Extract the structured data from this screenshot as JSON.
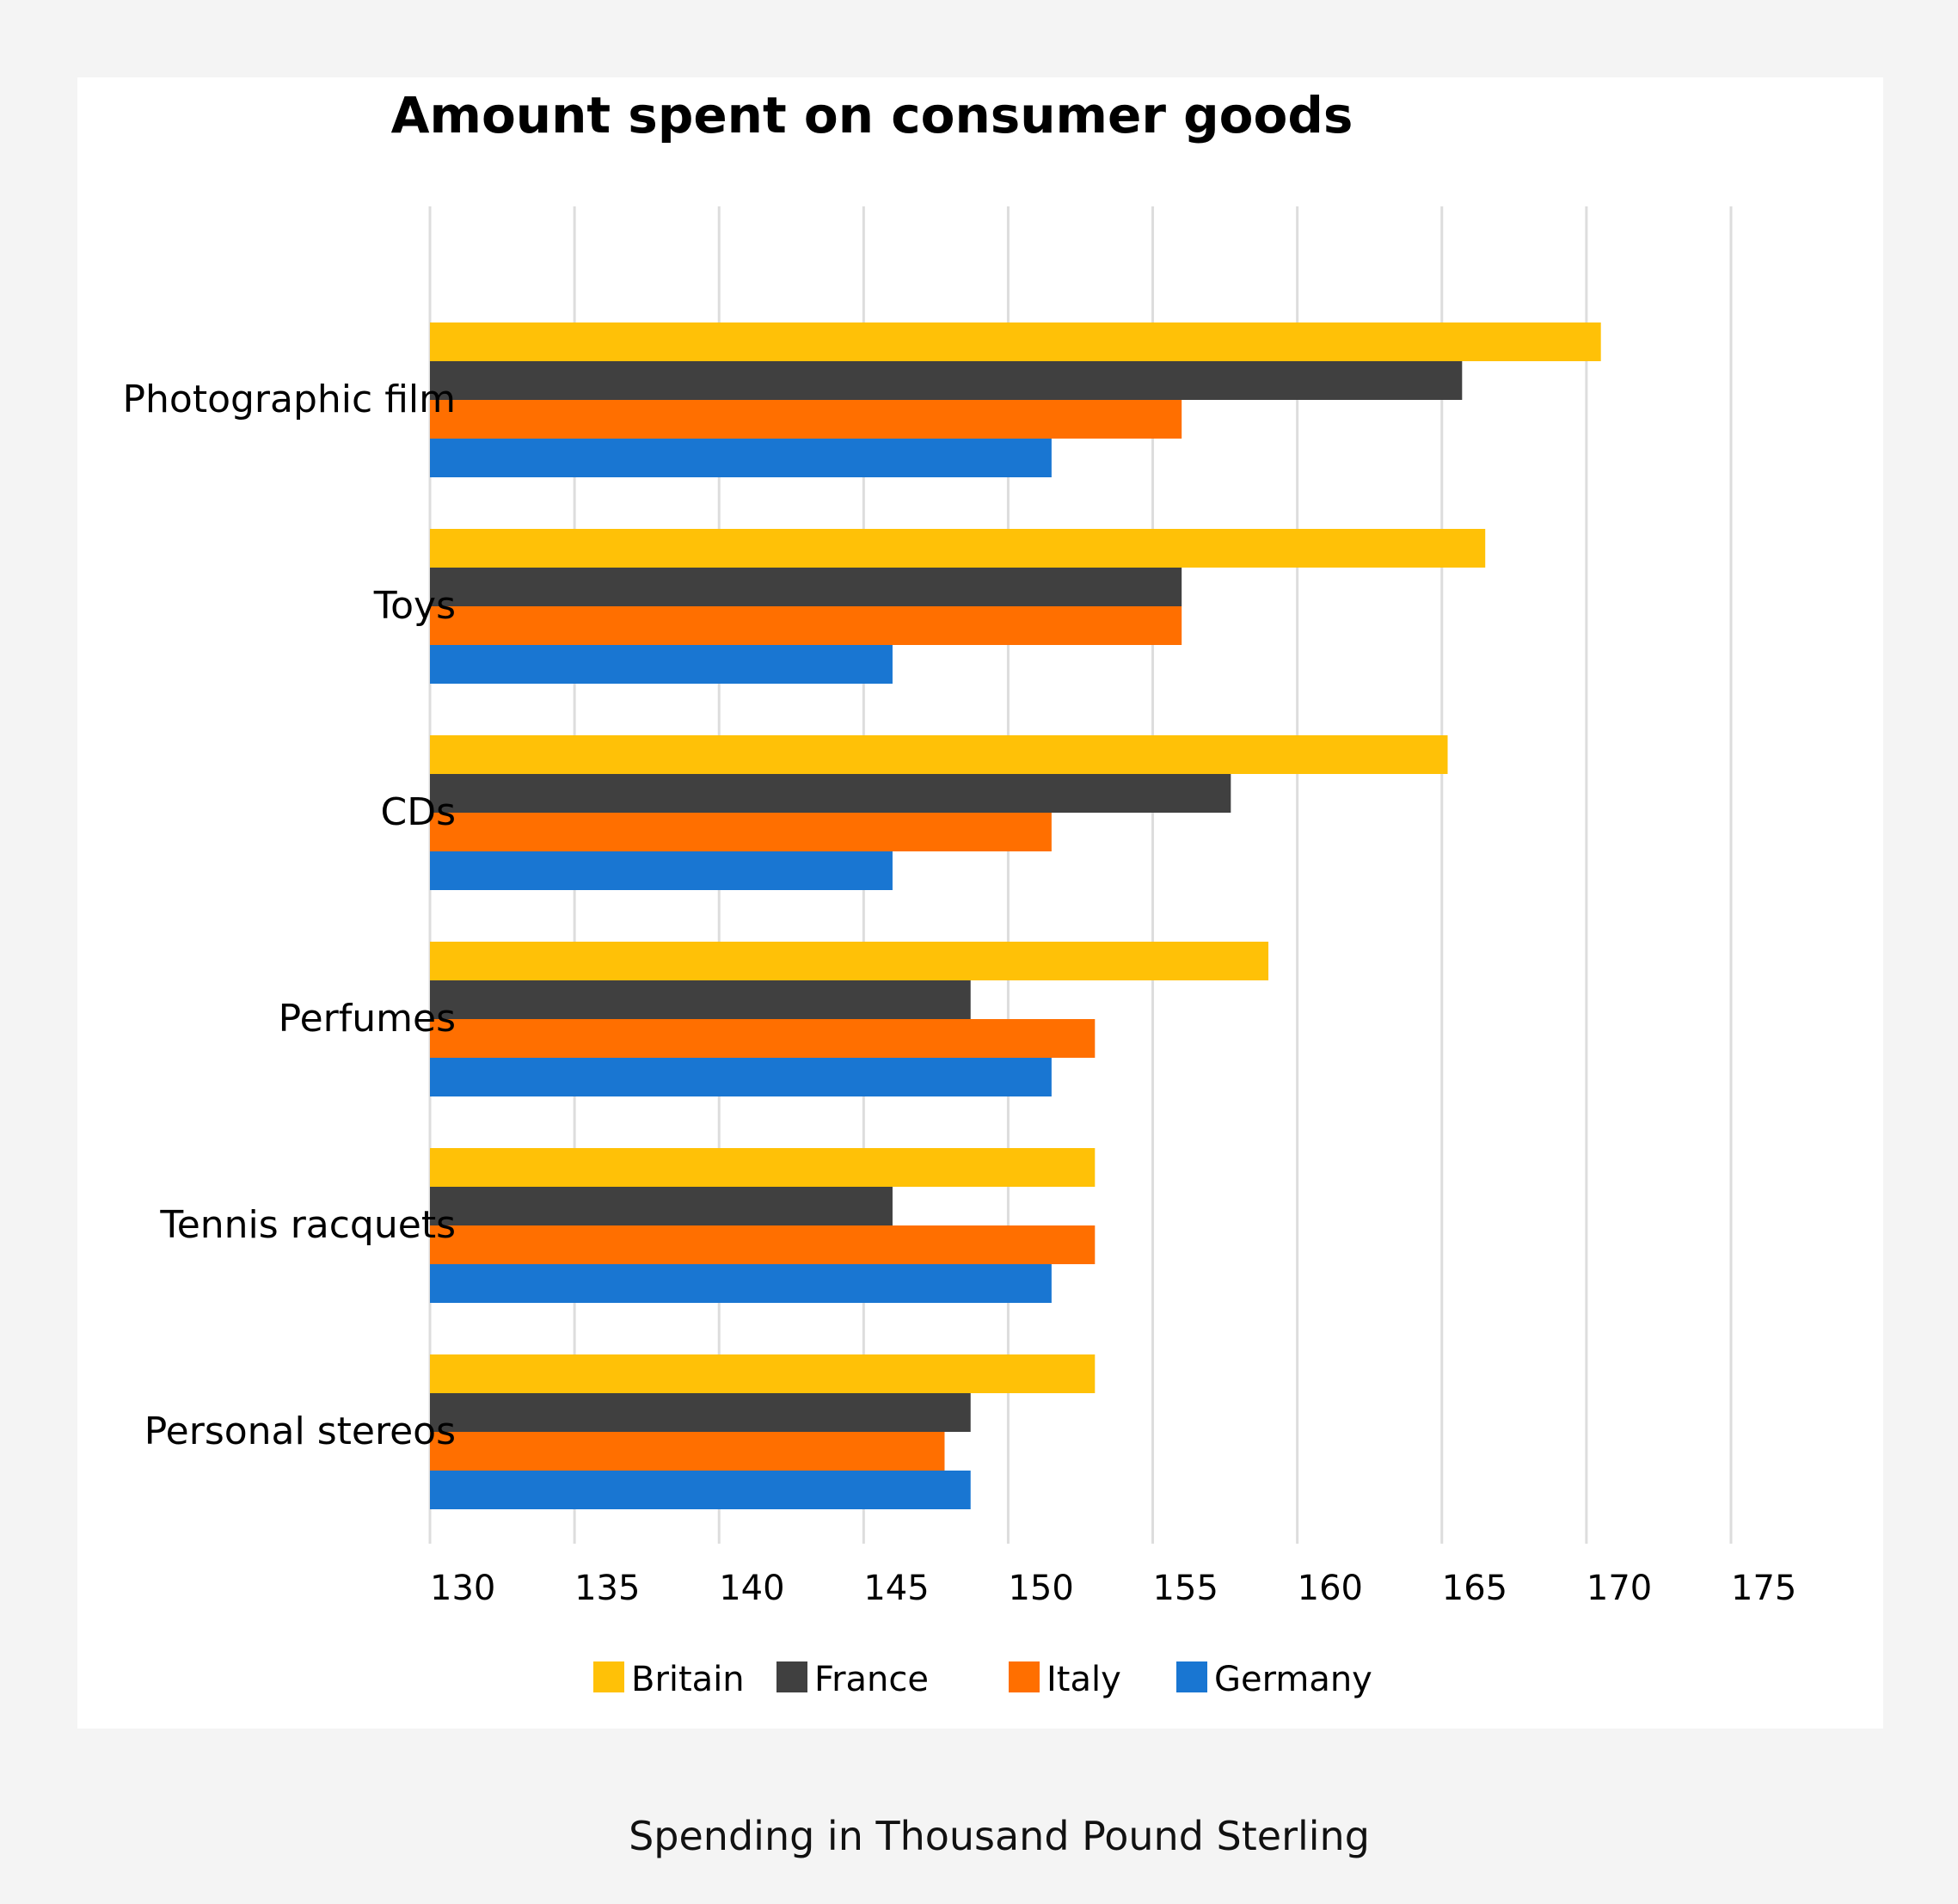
{
  "chart_data": {
    "type": "bar",
    "orientation": "horizontal",
    "title": "Amount spent on consumer goods",
    "xlabel": "Spending in Thousand Pound Sterling",
    "ylabel": "",
    "categories": [
      "Photographic film",
      "Toys",
      "CDs",
      "Perfumes",
      "Tennis racquets",
      "Personal stereos"
    ],
    "series": [
      {
        "name": "Britain",
        "color": "#ffc107",
        "values": [
          170.5,
          166.5,
          165.2,
          159,
          153,
          153
        ]
      },
      {
        "name": "France",
        "color": "#404040",
        "values": [
          165.7,
          156,
          157.7,
          148.7,
          146,
          148.7
        ]
      },
      {
        "name": "Italy",
        "color": "#ff6f00",
        "values": [
          156,
          156,
          151.5,
          153,
          153,
          147.8
        ]
      },
      {
        "name": "Germany",
        "color": "#1976d2",
        "values": [
          151.5,
          146,
          146,
          151.5,
          151.5,
          148.7
        ]
      }
    ],
    "xlim": [
      130,
      175
    ],
    "xticks": [
      "130",
      "135",
      "140",
      "145",
      "150",
      "155",
      "160",
      "165",
      "170",
      "175"
    ],
    "grid": true,
    "legend": "bottom"
  }
}
